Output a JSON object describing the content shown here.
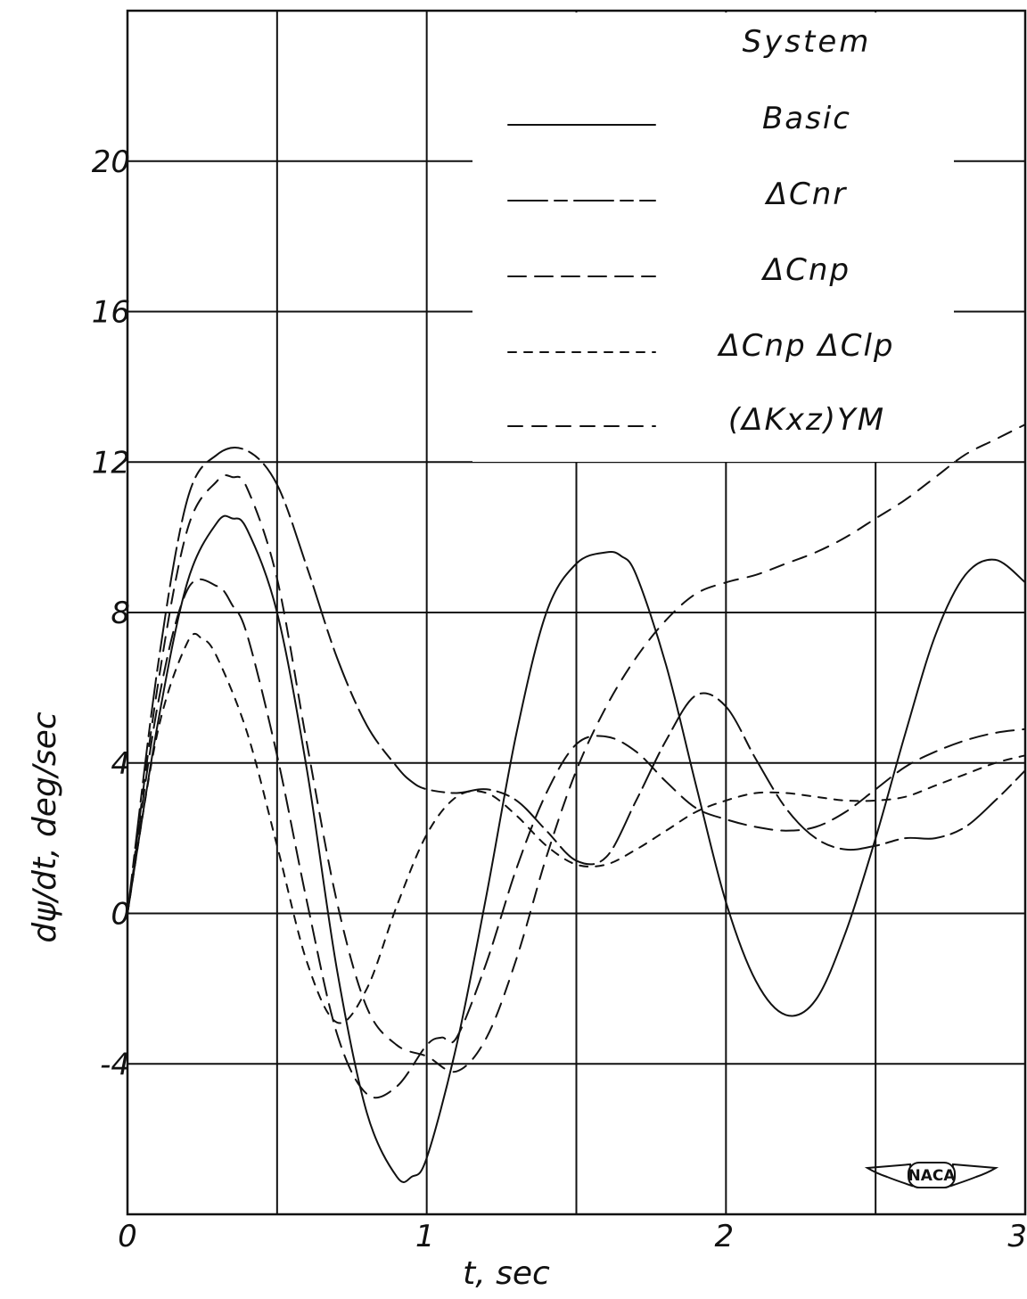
{
  "chart_data": {
    "type": "line",
    "title": "",
    "xlabel": "t, sec",
    "ylabel": "dψ/dt, deg/sec",
    "xlim": [
      0,
      3
    ],
    "ylim": [
      -8,
      24
    ],
    "x_ticks": [
      "0",
      "1",
      "2",
      "3"
    ],
    "y_ticks": [
      "-4",
      "0",
      "4",
      "8",
      "12",
      "16",
      "20"
    ],
    "grid": true,
    "legend": {
      "title": "System",
      "placement": "top-right"
    },
    "series": [
      {
        "name": "Basic",
        "dash": "solid",
        "x": [
          0,
          0.1,
          0.2,
          0.3,
          0.35,
          0.4,
          0.5,
          0.6,
          0.7,
          0.8,
          0.9,
          0.95,
          1.0,
          1.1,
          1.2,
          1.3,
          1.4,
          1.5,
          1.6,
          1.65,
          1.7,
          1.8,
          1.9,
          2.0,
          2.1,
          2.2,
          2.3,
          2.4,
          2.5,
          2.6,
          2.7,
          2.8,
          2.9,
          3.0
        ],
        "y": [
          0,
          5.0,
          8.8,
          10.4,
          10.5,
          10.2,
          8.0,
          3.8,
          -1.5,
          -5.3,
          -7.0,
          -7.0,
          -6.5,
          -3.5,
          0.5,
          4.8,
          8.0,
          9.3,
          9.6,
          9.5,
          9.0,
          6.6,
          3.4,
          0.3,
          -1.8,
          -2.7,
          -2.3,
          -0.5,
          2.0,
          4.8,
          7.4,
          9.0,
          9.4,
          8.8
        ]
      },
      {
        "name": "ΔCnr",
        "dash": "long-short",
        "x": [
          0,
          0.1,
          0.2,
          0.3,
          0.4,
          0.5,
          0.6,
          0.7,
          0.8,
          0.9,
          0.95,
          1.0,
          1.1,
          1.2,
          1.3,
          1.4,
          1.5,
          1.6,
          1.7,
          1.8,
          1.9,
          2.0,
          2.1,
          2.2,
          2.3,
          2.4,
          2.5,
          2.6,
          2.7,
          2.8,
          2.9,
          3.0
        ],
        "y": [
          0,
          6.5,
          11.0,
          12.2,
          12.3,
          11.4,
          9.2,
          6.8,
          5.0,
          3.9,
          3.5,
          3.3,
          3.2,
          3.3,
          3.0,
          2.2,
          1.4,
          1.5,
          3.0,
          4.6,
          5.8,
          5.5,
          4.1,
          2.8,
          2.0,
          1.7,
          1.8,
          2.0,
          2.0,
          2.3,
          3.0,
          3.8
        ]
      },
      {
        "name": "ΔCnp",
        "dash": "medium",
        "x": [
          0,
          0.1,
          0.2,
          0.3,
          0.35,
          0.4,
          0.5,
          0.6,
          0.7,
          0.8,
          0.9,
          1.0,
          1.05,
          1.1,
          1.2,
          1.3,
          1.4,
          1.5,
          1.6,
          1.7,
          1.8,
          1.9,
          2.0,
          2.1,
          2.2,
          2.3,
          2.4,
          2.5,
          2.6,
          2.7,
          2.8,
          2.9,
          3.0
        ],
        "y": [
          0,
          5.5,
          8.6,
          8.7,
          8.2,
          7.4,
          4.2,
          0.3,
          -3.2,
          -4.8,
          -4.6,
          -3.5,
          -3.3,
          -3.3,
          -1.3,
          1.2,
          3.2,
          4.5,
          4.7,
          4.3,
          3.5,
          2.8,
          2.5,
          2.3,
          2.2,
          2.3,
          2.7,
          3.3,
          3.9,
          4.3,
          4.6,
          4.8,
          4.9
        ]
      },
      {
        "name": "ΔCnp ΔClp",
        "dash": "short",
        "x": [
          0,
          0.1,
          0.2,
          0.25,
          0.3,
          0.4,
          0.5,
          0.6,
          0.7,
          0.8,
          0.9,
          1.0,
          1.1,
          1.2,
          1.3,
          1.4,
          1.5,
          1.6,
          1.7,
          1.8,
          1.9,
          2.0,
          2.1,
          2.2,
          2.3,
          2.4,
          2.5,
          2.6,
          2.7,
          2.8,
          2.9,
          3.0
        ],
        "y": [
          0,
          4.8,
          7.2,
          7.3,
          6.8,
          4.8,
          1.8,
          -1.3,
          -2.9,
          -2.0,
          0.2,
          2.1,
          3.1,
          3.2,
          2.6,
          1.8,
          1.3,
          1.3,
          1.7,
          2.2,
          2.7,
          3.0,
          3.2,
          3.2,
          3.1,
          3.0,
          3.0,
          3.1,
          3.4,
          3.7,
          4.0,
          4.2
        ]
      },
      {
        "name": "(ΔKxz)YM",
        "dash": "dash",
        "x": [
          0,
          0.1,
          0.2,
          0.3,
          0.35,
          0.4,
          0.5,
          0.6,
          0.7,
          0.8,
          0.9,
          1.0,
          1.1,
          1.2,
          1.3,
          1.4,
          1.5,
          1.6,
          1.7,
          1.8,
          1.9,
          2.0,
          2.1,
          2.2,
          2.3,
          2.4,
          2.5,
          2.6,
          2.7,
          2.8,
          2.9,
          3.0
        ],
        "y": [
          0,
          6.0,
          10.2,
          11.5,
          11.6,
          11.3,
          8.9,
          4.5,
          0.3,
          -2.5,
          -3.5,
          -3.8,
          -4.2,
          -3.3,
          -1.2,
          1.5,
          3.8,
          5.5,
          6.8,
          7.8,
          8.5,
          8.8,
          9.0,
          9.3,
          9.6,
          10.0,
          10.5,
          11.0,
          11.6,
          12.2,
          12.6,
          13.0
        ]
      }
    ]
  },
  "logo": {
    "text": "NACA"
  }
}
